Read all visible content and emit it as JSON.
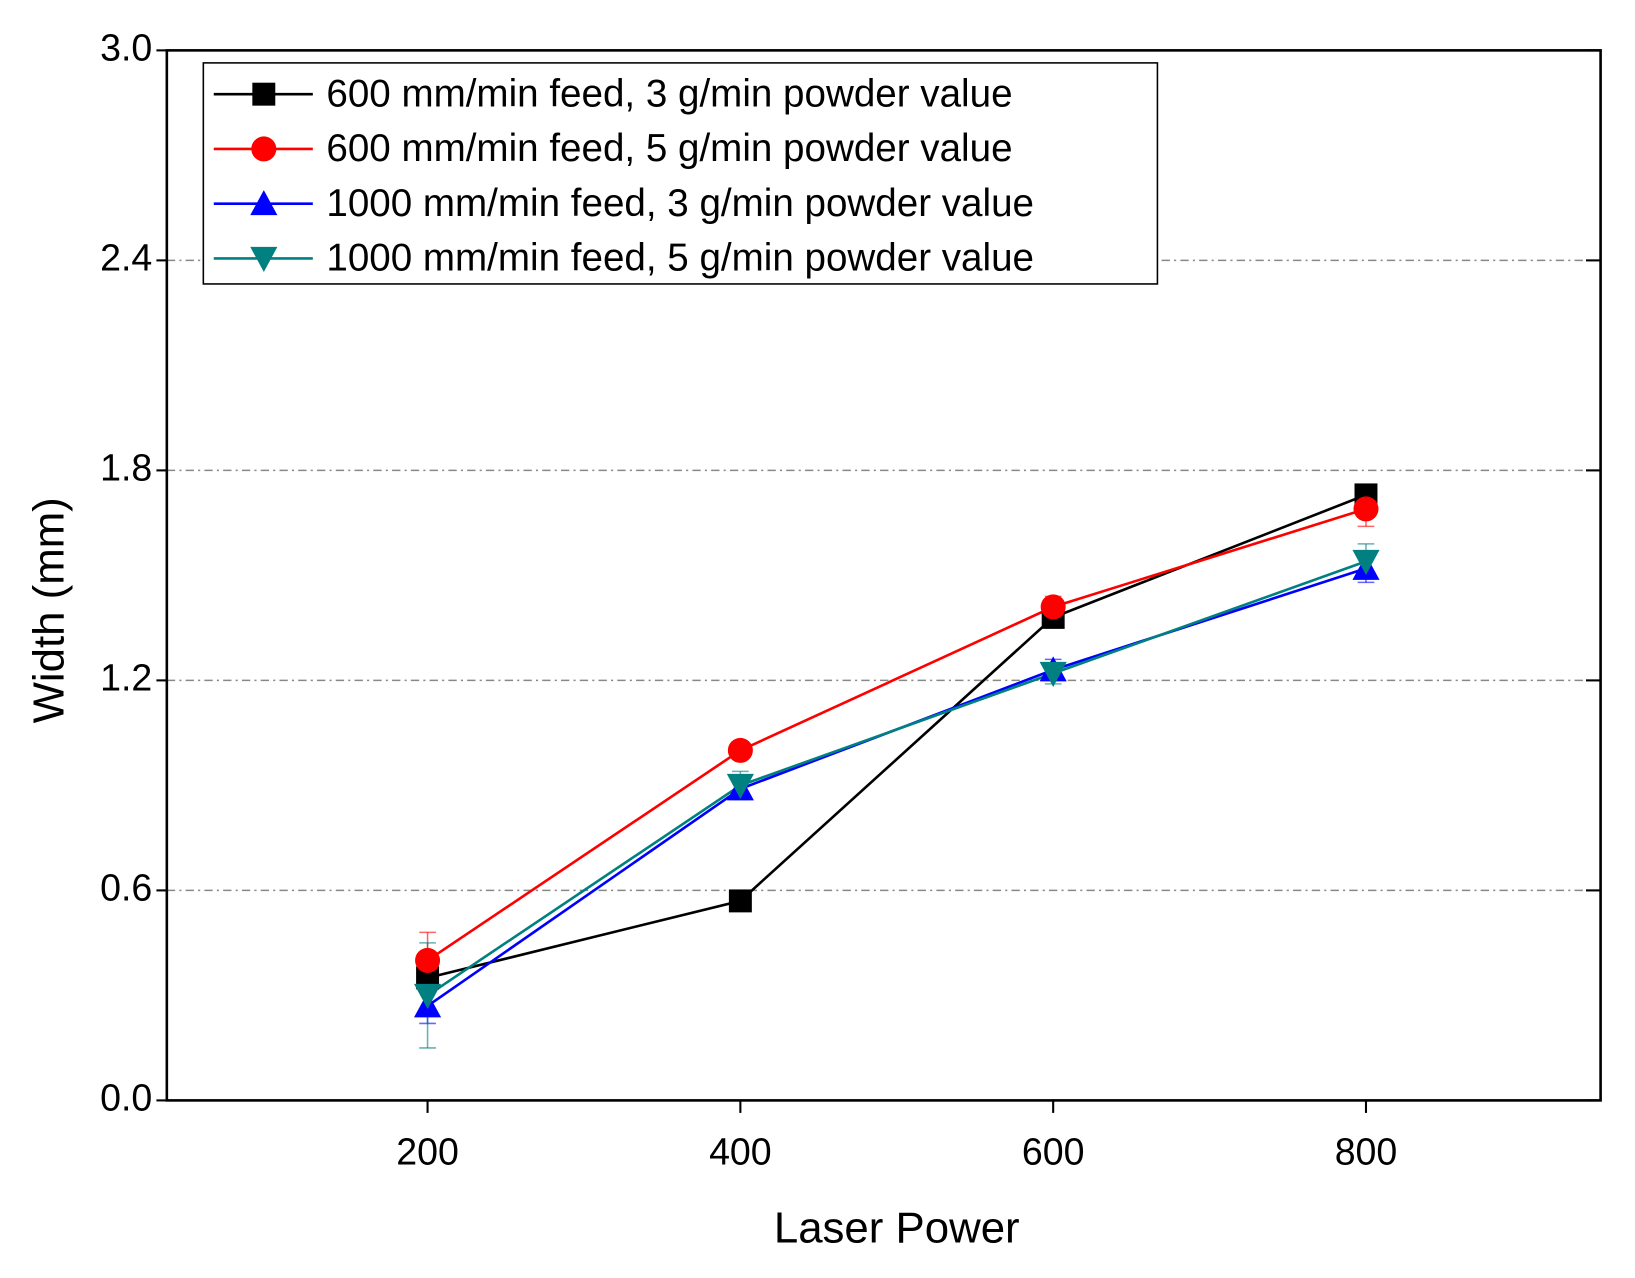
{
  "chart_data": {
    "type": "line",
    "xlabel": "Laser Power",
    "ylabel": "Width (mm)",
    "x": [
      200,
      400,
      600,
      800
    ],
    "series": [
      {
        "name": "600 mm/min feed, 3 g/min powder value",
        "color": "#000000",
        "marker": "square",
        "values": [
          0.35,
          0.57,
          1.38,
          1.73
        ],
        "errors": [
          0.03,
          0.02,
          0.03,
          0.03
        ]
      },
      {
        "name": "600 mm/min feed, 5 g/min powder value",
        "color": "#ff0000",
        "marker": "circle",
        "values": [
          0.4,
          1.0,
          1.41,
          1.69
        ],
        "errors": [
          0.08,
          0.02,
          0.03,
          0.05
        ]
      },
      {
        "name": "1000 mm/min feed, 3 g/min powder value",
        "color": "#0000ff",
        "marker": "triangle-up",
        "values": [
          0.27,
          0.89,
          1.23,
          1.52
        ],
        "errors": [
          0.05,
          0.03,
          0.03,
          0.04
        ]
      },
      {
        "name": "1000 mm/min feed, 5 g/min powder value",
        "color": "#008080",
        "marker": "triangle-down",
        "values": [
          0.3,
          0.9,
          1.22,
          1.54
        ],
        "errors": [
          0.15,
          0.04,
          0.03,
          0.05
        ]
      }
    ],
    "xlim": [
      33.3,
      950
    ],
    "xticks": [
      200,
      400,
      600,
      800
    ],
    "ylim": [
      0,
      3
    ],
    "yticks": [
      {
        "value": 0,
        "label": "0.0"
      },
      0.6,
      1.2,
      1.8,
      2.4,
      {
        "value": 3,
        "label": "3.0"
      }
    ],
    "grid": true,
    "legend": "upper left"
  }
}
